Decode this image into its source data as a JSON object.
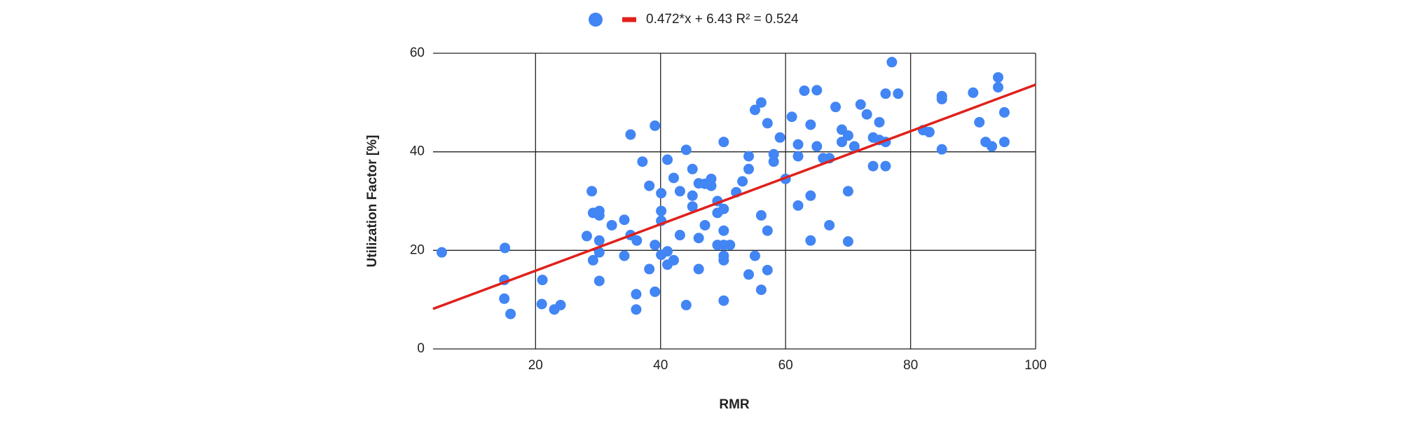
{
  "chart_data": {
    "type": "scatter",
    "x_label": "RMR",
    "y_label": "Utilization Factor [%]",
    "xlim": [
      3.6,
      100
    ],
    "ylim": [
      0,
      60
    ],
    "xticks": [
      20,
      40,
      60,
      80,
      100
    ],
    "yticks": [
      0,
      20,
      40,
      60
    ],
    "grid": true,
    "legend": "top",
    "series": [
      {
        "color": "#4285f4",
        "x": [
          5,
          15.1,
          15,
          15,
          16,
          21.1,
          21,
          23,
          24,
          28.2,
          29,
          29.2,
          30.2,
          30.2,
          29.2,
          30.2,
          30.2,
          30.2,
          32.2,
          34.2,
          34.2,
          35.2,
          35.2,
          36.2,
          36.1,
          36.1,
          37.1,
          38.2,
          38.2,
          39.1,
          39.1,
          39.1,
          40.1,
          40.1,
          40.1,
          40.1,
          41.1,
          41.1,
          41.1,
          42.1,
          42.1,
          43.1,
          43.1,
          44.1,
          44.1,
          45.1,
          45.1,
          45.1,
          46.1,
          46.1,
          46.1,
          47.1,
          47.1,
          48.1,
          48.1,
          49.1,
          49.1,
          49.1,
          50.1,
          50.1,
          50.1,
          50.1,
          50.1,
          50.1,
          50.1,
          51.1,
          52.1,
          53.1,
          54.1,
          54.1,
          54.1,
          55.1,
          55.1,
          56.1,
          56.1,
          56.1,
          57.1,
          57.1,
          57.1,
          58.1,
          58.1,
          59.1,
          60,
          61,
          62,
          62,
          62,
          63,
          64,
          64,
          64,
          65,
          65,
          66,
          67,
          67,
          68,
          69,
          69,
          70,
          70,
          70,
          71,
          72,
          73,
          74,
          74,
          75,
          75,
          76,
          76,
          76,
          77,
          78,
          82,
          83,
          85,
          85,
          85,
          90,
          91,
          92,
          93,
          94,
          94,
          95,
          95
        ],
        "values": [
          19.6,
          20.5,
          14,
          10.2,
          7.1,
          14,
          9.1,
          8,
          8.9,
          22.9,
          32,
          27.6,
          28,
          27.1,
          18,
          22,
          19.6,
          13.8,
          25.1,
          26.2,
          18.9,
          43.5,
          23.1,
          22,
          11.1,
          8,
          38,
          33.1,
          16.2,
          45.3,
          21.1,
          11.6,
          31.6,
          28,
          26,
          19.1,
          38.4,
          19.8,
          17.1,
          34.7,
          18,
          32,
          23.1,
          40.4,
          8.9,
          36.5,
          31.1,
          28.9,
          33.6,
          22.5,
          16.2,
          33.5,
          25.1,
          34.5,
          33.1,
          30,
          27.6,
          21.1,
          42,
          28.4,
          24,
          21.1,
          18.9,
          18,
          9.8,
          21.1,
          31.8,
          34,
          39.1,
          36.5,
          15.1,
          48.5,
          18.9,
          50,
          27.1,
          12,
          45.8,
          24,
          16,
          39.5,
          38,
          42.9,
          34.5,
          47.1,
          41.5,
          39.1,
          29.1,
          52.4,
          45.5,
          31.1,
          22,
          52.5,
          41.1,
          38.7,
          38.7,
          25.1,
          49.1,
          44.5,
          42,
          43.3,
          32,
          21.8,
          41.1,
          49.6,
          47.6,
          42.9,
          37.1,
          46,
          42.4,
          51.8,
          42,
          37.1,
          58.2,
          51.8,
          44.4,
          44,
          51.3,
          50.7,
          40.5,
          52,
          46,
          42,
          41.1,
          55.1,
          53.1,
          48,
          42
        ]
      }
    ],
    "trendline": {
      "label": "0.472*x + 6.43 R² = 0.524",
      "slope": 0.472,
      "intercept": 6.43,
      "color": "#e0201b"
    }
  }
}
